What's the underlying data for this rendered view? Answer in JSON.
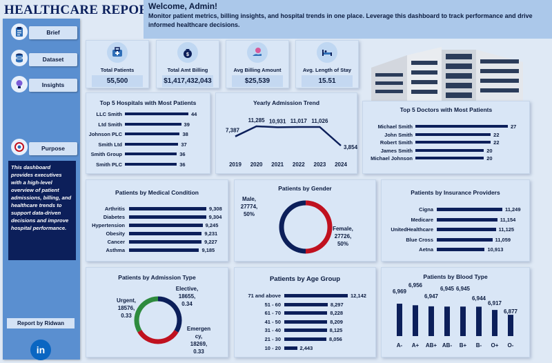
{
  "header": {
    "title": "HEALTHCARE REPORT",
    "welcome": "Welcome, Admin!",
    "description": "Monitor patient metrics, billing insights, and hospital trends in one place. Leverage this dashboard to track performance and drive informed healthcare decisions."
  },
  "sidebar": {
    "items": [
      {
        "label": "Brief",
        "icon": "clipboard-icon"
      },
      {
        "label": "Dataset",
        "icon": "database-icon"
      },
      {
        "label": "Insights",
        "icon": "lightbulb-icon"
      },
      {
        "label": "Purpose",
        "icon": "target-icon"
      }
    ],
    "purpose_text": "This dashboard provides executives with a high-level overview of patient admissions, billing, and healthcare trends to support data-driven decisions and improve hospital performance.",
    "report_by": "Report by Ridwan",
    "linkedin": "in"
  },
  "kpis": [
    {
      "label": "Total Patients",
      "value": "55,500",
      "icon": "medical-kit-icon"
    },
    {
      "label": "Total Amt Billing",
      "value": "$1,417,432,043",
      "icon": "money-bag-icon"
    },
    {
      "label": "Avg Billing Amount",
      "value": "$25,539",
      "icon": "money-hand-icon"
    },
    {
      "label": "Avg. Length of Stay",
      "value": "15.51",
      "icon": "hospital-bed-icon"
    }
  ],
  "colors": {
    "navy": "#0c1f5a",
    "red": "#c0111f",
    "green": "#2e8b3e",
    "sidebar": "#5a8fd0",
    "banner": "#abc8ea"
  },
  "chart_data": [
    {
      "id": "hospitals",
      "type": "bar",
      "orientation": "horizontal",
      "title": "Top 5 Hospitals with Most Patients",
      "categories": [
        "LLC Smith",
        "Ltd Smith",
        "Johnson PLC",
        "Smith Ltd",
        "Smith Group",
        "Smith PLC"
      ],
      "values": [
        44,
        39,
        38,
        37,
        36,
        36
      ],
      "xlim": [
        0,
        44
      ]
    },
    {
      "id": "admission-trend",
      "type": "line",
      "title": "Yearly Admission Trend",
      "x": [
        "2019",
        "2020",
        "2021",
        "2022",
        "2023",
        "2024"
      ],
      "values": [
        7387,
        11285,
        10931,
        11017,
        11026,
        3854
      ],
      "labels": [
        "7,387",
        "11,285",
        "10,931",
        "11,017",
        "11,026",
        "3,854"
      ],
      "ylim": [
        3000,
        12000
      ]
    },
    {
      "id": "doctors",
      "type": "bar",
      "orientation": "horizontal",
      "title": "Top 5 Doctors with Most Patients",
      "categories": [
        "Michael Smith",
        "John Smith",
        "Robert Smith",
        "James Smith",
        "Michael Johnson"
      ],
      "values": [
        27,
        22,
        22,
        20,
        20
      ],
      "xlim": [
        0,
        27
      ]
    },
    {
      "id": "medical-condition",
      "type": "bar",
      "orientation": "horizontal",
      "title": "Patients by Medical Condition",
      "categories": [
        "Arthritis",
        "Diabetes",
        "Hypertension",
        "Obesity",
        "Cancer",
        "Asthma"
      ],
      "values": [
        9308,
        9304,
        9245,
        9231,
        9227,
        9185
      ],
      "labels": [
        "9,308",
        "9,304",
        "9,245",
        "9,231",
        "9,227",
        "9,185"
      ],
      "xlim": [
        8000,
        9308
      ]
    },
    {
      "id": "gender",
      "type": "pie",
      "title": "Patients by Gender",
      "categories": [
        "Male",
        "Female"
      ],
      "values": [
        27774,
        27726
      ],
      "labels": [
        [
          "Male,",
          "27774,",
          "50%"
        ],
        [
          "Female,",
          "27726,",
          "50%"
        ]
      ],
      "colors": [
        "#0c1f5a",
        "#c0111f"
      ]
    },
    {
      "id": "insurance",
      "type": "bar",
      "orientation": "horizontal",
      "title": "Patients by Insurance Providers",
      "categories": [
        "Cigna",
        "Medicare",
        "UnitedHealthcare",
        "Blue Cross",
        "Aetna"
      ],
      "values": [
        11249,
        11154,
        11125,
        11059,
        10913
      ],
      "labels": [
        "11,249",
        "11,154",
        "11,125",
        "11,059",
        "10,913"
      ],
      "xlim": [
        10000,
        11249
      ]
    },
    {
      "id": "admission-type",
      "type": "pie",
      "title": "Patients by Admission Type",
      "categories": [
        "Elective",
        "Emergency",
        "Urgent"
      ],
      "values": [
        18655,
        18269,
        18576
      ],
      "labels": [
        [
          "Elective,",
          "18655,",
          "0.34"
        ],
        [
          "Emergen",
          "cy,",
          "18269,",
          "0.33"
        ],
        [
          "Urgent,",
          "18576,",
          "0.33"
        ]
      ],
      "colors": [
        "#0c1f5a",
        "#c0111f",
        "#2e8b3e"
      ]
    },
    {
      "id": "age-group",
      "type": "bar",
      "orientation": "horizontal",
      "title": "Patients by Age Group",
      "categories": [
        "71 and above",
        "51 - 60",
        "61 - 70",
        "41 - 50",
        "31 - 40",
        "21 - 30",
        "10 - 20"
      ],
      "values": [
        12142,
        8297,
        8228,
        8209,
        8125,
        8056,
        2443
      ],
      "labels": [
        "12,142",
        "8,297",
        "8,228",
        "8,209",
        "8,125",
        "8,056",
        "2,443"
      ],
      "xlim": [
        0,
        12142
      ]
    },
    {
      "id": "blood-type",
      "type": "bar",
      "title": "Patients by Blood Type",
      "categories": [
        "A-",
        "A+",
        "AB+",
        "AB-",
        "B+",
        "B-",
        "O+",
        "O-"
      ],
      "values": [
        6969,
        6956,
        6947,
        6945,
        6945,
        6944,
        6917,
        6877
      ],
      "labels": [
        "6,969",
        "6,956",
        "6,947",
        "6,945",
        "6,945",
        "6,944",
        "6,917",
        "6,877"
      ],
      "ylim": [
        6700,
        6975
      ]
    }
  ]
}
